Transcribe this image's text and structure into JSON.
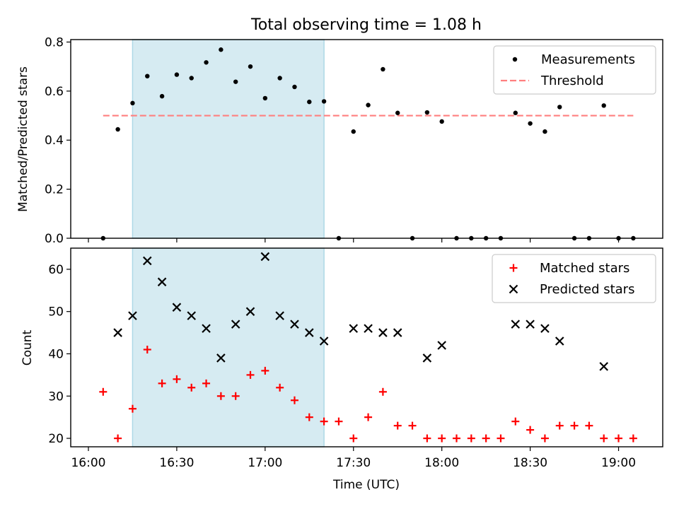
{
  "figure": {
    "title": "Total observing time = 1.08 h"
  },
  "colors": {
    "highlight": "#add8e6",
    "threshold": "#ff7f7f",
    "measurements": "#000000",
    "matched": "#ff0000",
    "predicted": "#000000"
  },
  "chart_data": [
    {
      "type": "scatter",
      "panel": "top",
      "title": "Total observing time = 1.08 h",
      "xlabel": "",
      "ylabel": "Matched/Predicted stars",
      "x_unit": "minutes after 16:00 UTC",
      "xlim": [
        -6,
        195
      ],
      "ylim": [
        0,
        0.81
      ],
      "yticks": [
        0.0,
        0.2,
        0.4,
        0.6,
        0.8
      ],
      "ytick_labels": [
        "0.0",
        "0.2",
        "0.4",
        "0.6",
        "0.8"
      ],
      "xticks": [
        0,
        30,
        60,
        90,
        120,
        150,
        180
      ],
      "highlight_span": {
        "start": "16:15",
        "end": "17:20"
      },
      "legend_position": "top-right",
      "series": [
        {
          "name": "Measurements",
          "marker": "dot",
          "x": [
            "16:05",
            "16:10",
            "16:15",
            "16:20",
            "16:25",
            "16:30",
            "16:35",
            "16:40",
            "16:45",
            "16:50",
            "16:55",
            "17:00",
            "17:05",
            "17:10",
            "17:15",
            "17:20",
            "17:25",
            "17:30",
            "17:35",
            "17:40",
            "17:45",
            "17:50",
            "17:55",
            "18:00",
            "18:05",
            "18:10",
            "18:15",
            "18:20",
            "18:25",
            "18:30",
            "18:35",
            "18:40",
            "18:45",
            "18:50",
            "18:55",
            "19:00",
            "19:05"
          ],
          "y": [
            0.0,
            0.444,
            0.551,
            0.661,
            0.579,
            0.667,
            0.653,
            0.717,
            0.769,
            0.638,
            0.7,
            0.571,
            0.653,
            0.617,
            0.556,
            0.558,
            0.0,
            0.435,
            0.543,
            0.689,
            0.511,
            0.0,
            0.513,
            0.476,
            0.0,
            0.0,
            0.0,
            0.0,
            0.511,
            0.468,
            0.435,
            0.535,
            0.0,
            0.0,
            0.541,
            0.0,
            0.0
          ]
        },
        {
          "name": "Threshold",
          "style": "dashed",
          "x": [
            "16:05",
            "19:05"
          ],
          "y": [
            0.5,
            0.5
          ]
        }
      ]
    },
    {
      "type": "scatter",
      "panel": "bottom",
      "xlabel": "Time (UTC)",
      "ylabel": "Count",
      "xlim": [
        -6,
        195
      ],
      "ylim": [
        18,
        65
      ],
      "yticks": [
        20,
        30,
        40,
        50,
        60
      ],
      "ytick_labels": [
        "20",
        "30",
        "40",
        "50",
        "60"
      ],
      "xticks": [
        0,
        30,
        60,
        90,
        120,
        150,
        180
      ],
      "xtick_labels": [
        "16:00",
        "16:30",
        "17:00",
        "17:30",
        "18:00",
        "18:30",
        "19:00"
      ],
      "highlight_span": {
        "start": "16:15",
        "end": "17:20"
      },
      "legend_position": "top-right",
      "series": [
        {
          "name": "Matched stars",
          "marker": "plus",
          "x": [
            "16:05",
            "16:10",
            "16:15",
            "16:20",
            "16:25",
            "16:30",
            "16:35",
            "16:40",
            "16:45",
            "16:50",
            "16:55",
            "17:00",
            "17:05",
            "17:10",
            "17:15",
            "17:20",
            "17:25",
            "17:30",
            "17:35",
            "17:40",
            "17:45",
            "17:50",
            "17:55",
            "18:00",
            "18:05",
            "18:10",
            "18:15",
            "18:20",
            "18:25",
            "18:30",
            "18:35",
            "18:40",
            "18:45",
            "18:50",
            "18:55",
            "19:00",
            "19:05"
          ],
          "y": [
            31,
            20,
            27,
            41,
            33,
            34,
            32,
            33,
            30,
            30,
            35,
            36,
            32,
            29,
            25,
            24,
            24,
            20,
            25,
            31,
            23,
            23,
            20,
            20,
            20,
            20,
            20,
            20,
            24,
            22,
            20,
            23,
            23,
            23,
            20,
            20,
            20
          ]
        },
        {
          "name": "Predicted stars",
          "marker": "x",
          "x": [
            "16:10",
            "16:15",
            "16:20",
            "16:25",
            "16:30",
            "16:35",
            "16:40",
            "16:45",
            "16:50",
            "16:55",
            "17:00",
            "17:05",
            "17:10",
            "17:15",
            "17:20",
            "17:30",
            "17:35",
            "17:40",
            "17:45",
            "17:55",
            "18:00",
            "18:25",
            "18:30",
            "18:35",
            "18:40",
            "18:55"
          ],
          "y": [
            45,
            49,
            62,
            57,
            51,
            49,
            46,
            39,
            47,
            50,
            63,
            49,
            47,
            45,
            43,
            46,
            46,
            45,
            45,
            39,
            42,
            47,
            47,
            46,
            43,
            37
          ]
        }
      ]
    }
  ]
}
